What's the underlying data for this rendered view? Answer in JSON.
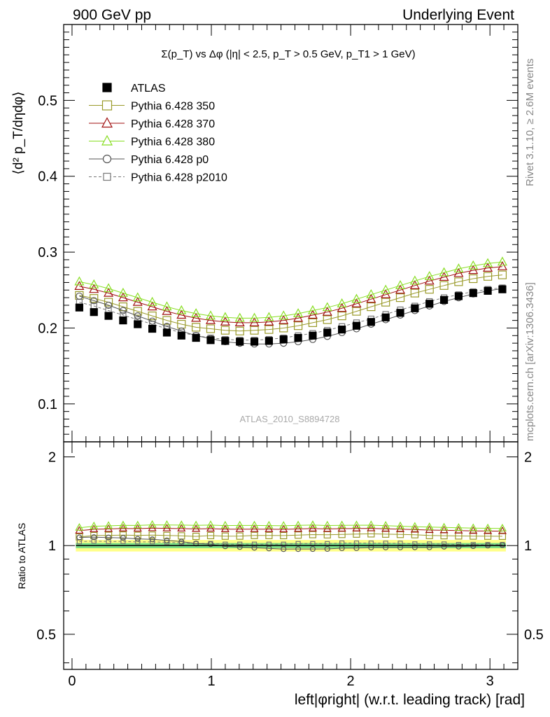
{
  "header": {
    "left": "900 GeV pp",
    "right": "Underlying Event"
  },
  "side_labels": {
    "rivet": "Rivet 3.1.10, ≥ 2.6M events",
    "mcplots": "mcplots.cern.ch [arXiv:1306.3436]"
  },
  "colors": {
    "atlas": "#000000",
    "py350": "#9a9a2a",
    "py370": "#a01010",
    "py380": "#88dd22",
    "p0": "#555555",
    "p2010": "#777777",
    "band_outer": "#ffff88",
    "band_inner": "#77dd88"
  },
  "chart_data": [
    {
      "type": "scatter",
      "panel": "main",
      "title": "Σ(p_T) vs Δφ (|η| < 2.5, p_T > 0.5 GeV, p_T1 > 1 GeV)",
      "ylabel": "⟨d² p_T/dηdφ⟩",
      "xlabel": "",
      "watermark": "ATLAS_2010_S8894728",
      "xlim": [
        -0.06,
        3.2
      ],
      "ylim": [
        0.05,
        0.6
      ],
      "y_ticks": [
        "0.1",
        "0.2",
        "0.3",
        "0.4",
        "0.5"
      ],
      "legend_position": "top-left",
      "x": [
        0.0524,
        0.1571,
        0.2618,
        0.3665,
        0.4712,
        0.576,
        0.6807,
        0.7854,
        0.8901,
        0.9948,
        1.0996,
        1.2043,
        1.309,
        1.4137,
        1.5184,
        1.6232,
        1.7279,
        1.8326,
        1.9373,
        2.042,
        2.1468,
        2.2515,
        2.3562,
        2.4609,
        2.5656,
        2.6704,
        2.7751,
        2.8798,
        2.9845,
        3.0892
      ],
      "series": [
        {
          "name": "ATLAS",
          "marker": "filled-square",
          "values": [
            0.227,
            0.221,
            0.216,
            0.21,
            0.205,
            0.199,
            0.194,
            0.19,
            0.187,
            0.184,
            0.183,
            0.182,
            0.182,
            0.183,
            0.185,
            0.187,
            0.19,
            0.194,
            0.198,
            0.203,
            0.208,
            0.214,
            0.22,
            0.226,
            0.232,
            0.237,
            0.242,
            0.246,
            0.249,
            0.251
          ]
        },
        {
          "name": "Pythia 6.428 350",
          "marker": "open-square-line",
          "values": [
            0.243,
            0.239,
            0.234,
            0.228,
            0.222,
            0.216,
            0.21,
            0.205,
            0.201,
            0.199,
            0.197,
            0.196,
            0.197,
            0.198,
            0.2,
            0.203,
            0.207,
            0.211,
            0.216,
            0.222,
            0.228,
            0.234,
            0.24,
            0.246,
            0.251,
            0.256,
            0.261,
            0.265,
            0.268,
            0.27
          ]
        },
        {
          "name": "Pythia 6.428 370",
          "marker": "open-triangle-line",
          "values": [
            0.255,
            0.251,
            0.246,
            0.24,
            0.234,
            0.228,
            0.222,
            0.217,
            0.213,
            0.21,
            0.208,
            0.207,
            0.207,
            0.208,
            0.21,
            0.213,
            0.217,
            0.221,
            0.226,
            0.232,
            0.238,
            0.244,
            0.25,
            0.256,
            0.262,
            0.267,
            0.272,
            0.276,
            0.279,
            0.281
          ]
        },
        {
          "name": "Pythia 6.428 380",
          "marker": "open-triangle-line",
          "values": [
            0.261,
            0.257,
            0.252,
            0.246,
            0.24,
            0.234,
            0.228,
            0.223,
            0.219,
            0.216,
            0.214,
            0.213,
            0.213,
            0.214,
            0.216,
            0.219,
            0.223,
            0.227,
            0.232,
            0.238,
            0.244,
            0.25,
            0.256,
            0.262,
            0.268,
            0.273,
            0.278,
            0.282,
            0.285,
            0.287
          ]
        },
        {
          "name": "Pythia 6.428 p0",
          "marker": "open-circle-line",
          "values": [
            0.242,
            0.236,
            0.23,
            0.223,
            0.216,
            0.209,
            0.202,
            0.196,
            0.19,
            0.186,
            0.182,
            0.18,
            0.179,
            0.179,
            0.18,
            0.182,
            0.185,
            0.189,
            0.194,
            0.199,
            0.205,
            0.211,
            0.217,
            0.223,
            0.229,
            0.235,
            0.24,
            0.245,
            0.249,
            0.252
          ]
        },
        {
          "name": "Pythia 6.428 p2010",
          "marker": "open-square-dashed",
          "values": [
            0.234,
            0.229,
            0.223,
            0.217,
            0.211,
            0.205,
            0.199,
            0.194,
            0.19,
            0.187,
            0.185,
            0.184,
            0.184,
            0.185,
            0.187,
            0.19,
            0.193,
            0.197,
            0.202,
            0.207,
            0.212,
            0.218,
            0.224,
            0.229,
            0.235,
            0.24,
            0.244,
            0.248,
            0.251,
            0.253
          ]
        }
      ]
    },
    {
      "type": "line",
      "panel": "ratio",
      "xlabel": "left|φright| (w.r.t. leading track) [rad]",
      "ylabel": "Ratio to ATLAS",
      "xlim": [
        -0.06,
        3.2
      ],
      "ylim": [
        0.38,
        2.25
      ],
      "y_scale": "log",
      "x_ticks": [
        "0",
        "1",
        "2",
        "3"
      ],
      "y_ticks": [
        "0.5",
        "1",
        "2"
      ],
      "reference_line": 1.0,
      "band_outer": [
        0.955,
        1.045
      ],
      "band_inner": [
        0.98,
        1.02
      ]
    }
  ]
}
